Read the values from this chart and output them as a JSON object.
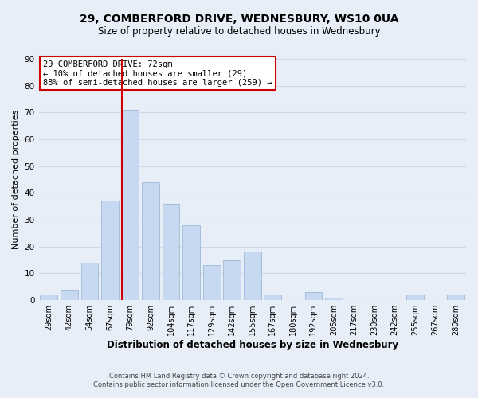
{
  "title": "29, COMBERFORD DRIVE, WEDNESBURY, WS10 0UA",
  "subtitle": "Size of property relative to detached houses in Wednesbury",
  "xlabel": "Distribution of detached houses by size in Wednesbury",
  "ylabel": "Number of detached properties",
  "bar_labels": [
    "29sqm",
    "42sqm",
    "54sqm",
    "67sqm",
    "79sqm",
    "92sqm",
    "104sqm",
    "117sqm",
    "129sqm",
    "142sqm",
    "155sqm",
    "167sqm",
    "180sqm",
    "192sqm",
    "205sqm",
    "217sqm",
    "230sqm",
    "242sqm",
    "255sqm",
    "267sqm",
    "280sqm"
  ],
  "bar_values": [
    2,
    4,
    14,
    37,
    71,
    44,
    36,
    28,
    13,
    15,
    18,
    2,
    0,
    3,
    1,
    0,
    0,
    0,
    2,
    0,
    2
  ],
  "bar_color": "#c6d9f0",
  "bar_edge_color": "#a0b8d8",
  "vline_color": "#cc0000",
  "vline_x_index": 4,
  "ylim": [
    0,
    90
  ],
  "yticks": [
    0,
    10,
    20,
    30,
    40,
    50,
    60,
    70,
    80,
    90
  ],
  "annotation_title": "29 COMBERFORD DRIVE: 72sqm",
  "annotation_line1": "← 10% of detached houses are smaller (29)",
  "annotation_line2": "88% of semi-detached houses are larger (259) →",
  "annotation_box_color": "#ffffff",
  "annotation_box_edge": "#cc0000",
  "footer1": "Contains HM Land Registry data © Crown copyright and database right 2024.",
  "footer2": "Contains public sector information licensed under the Open Government Licence v3.0.",
  "grid_color": "#d0d8e8",
  "background_color": "#e8eef8",
  "title_fontsize": 10,
  "subtitle_fontsize": 8.5,
  "ylabel_fontsize": 8,
  "xlabel_fontsize": 8.5,
  "tick_fontsize": 7,
  "ytick_fontsize": 7.5,
  "ann_fontsize": 7.5,
  "footer_fontsize": 6
}
